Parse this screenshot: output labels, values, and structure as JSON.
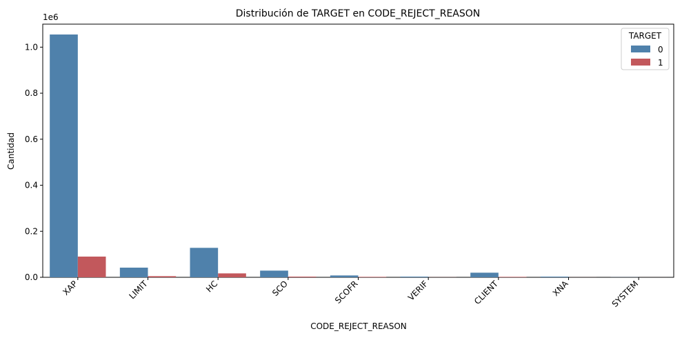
{
  "chart_data": {
    "type": "bar",
    "title": "Distribución de TARGET en CODE_REJECT_REASON",
    "xlabel": "CODE_REJECT_REASON",
    "ylabel": "Cantidad",
    "y_offset_label": "1e6",
    "ylim": [
      0,
      1.1
    ],
    "y_ticks": [
      "0.0",
      "0.2",
      "0.4",
      "0.6",
      "0.8",
      "1.0"
    ],
    "categories": [
      "XAP",
      "LIMIT",
      "HC",
      "SCO",
      "SCOFR",
      "VERIF",
      "CLIENT",
      "XNA",
      "SYSTEM"
    ],
    "legend_title": "TARGET",
    "legend_position": "top-right",
    "grid": false,
    "series": [
      {
        "name": "0",
        "color": "#4f81ab",
        "values": [
          1.055,
          0.042,
          0.128,
          0.029,
          0.008,
          0.003,
          0.02,
          0.003,
          0.0005
        ]
      },
      {
        "name": "1",
        "color": "#c2585c",
        "values": [
          0.09,
          0.005,
          0.017,
          0.003,
          0.002,
          0.0005,
          0.002,
          0.0003,
          0.0001
        ]
      }
    ]
  }
}
